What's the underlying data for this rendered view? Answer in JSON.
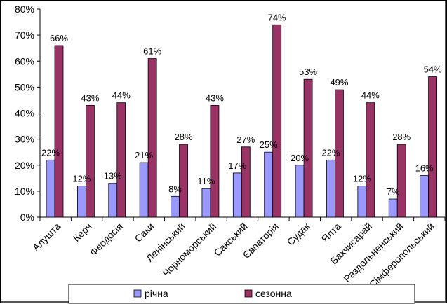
{
  "chart_data": {
    "type": "bar",
    "title": "",
    "xlabel": "",
    "ylabel": "",
    "ylim": [
      0,
      80
    ],
    "yticks": [
      "0%",
      "10%",
      "20%",
      "30%",
      "40%",
      "50%",
      "60%",
      "70%",
      "80%"
    ],
    "grid": false,
    "legend_position": "bottom",
    "categories": [
      "Алушта",
      "Керч",
      "Феодосія",
      "Саки",
      "Ленінський",
      "Чорноморський",
      "Сакський",
      "Євпаторія",
      "Судак",
      "Ялта",
      "Бахчисарай",
      "Раздольненський",
      "Сімферопольський"
    ],
    "series": [
      {
        "name": "річна",
        "color": "#9999ff",
        "values": [
          22,
          12,
          13,
          21,
          8,
          11,
          17,
          25,
          20,
          22,
          12,
          7,
          16
        ],
        "labels": [
          "22%",
          "12%",
          "13%",
          "21%",
          "8%",
          "11%",
          "17%",
          "25%",
          "20%",
          "22%",
          "12%",
          "7%",
          "16%"
        ]
      },
      {
        "name": "сезонна",
        "color": "#993366",
        "values": [
          66,
          43,
          44,
          61,
          28,
          43,
          27,
          74,
          53,
          49,
          44,
          28,
          54
        ],
        "labels": [
          "66%",
          "43%",
          "44%",
          "61%",
          "28%",
          "43%",
          "27%",
          "74%",
          "53%",
          "49%",
          "44%",
          "28%",
          "54%"
        ]
      }
    ]
  }
}
